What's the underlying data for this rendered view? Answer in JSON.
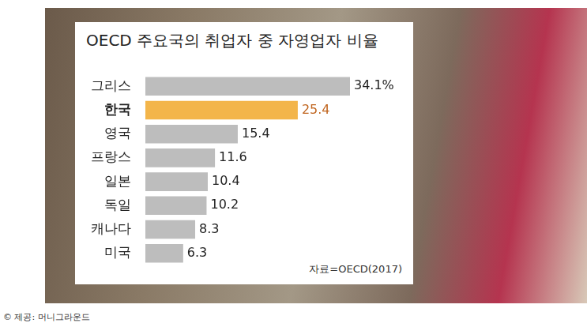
{
  "chart_data": {
    "type": "bar",
    "orientation": "horizontal",
    "title": "OECD 주요국의 취업자 중 자영업자 비율",
    "categories": [
      "그리스",
      "한국",
      "영국",
      "프랑스",
      "일본",
      "독일",
      "캐나다",
      "미국"
    ],
    "values": [
      34.1,
      25.4,
      15.4,
      11.6,
      10.4,
      10.2,
      8.3,
      6.3
    ],
    "value_labels": [
      "34.1%",
      "25.4",
      "15.4",
      "11.6",
      "10.4",
      "10.2",
      "8.3",
      "6.3"
    ],
    "colors": [
      "#bdbdbd",
      "#f3b54a",
      "#bdbdbd",
      "#bdbdbd",
      "#bdbdbd",
      "#bdbdbd",
      "#bdbdbd",
      "#bdbdbd"
    ],
    "xlim": [
      0,
      42
    ],
    "data_labels": true,
    "tick_labels": "y",
    "grid": false,
    "source": "자료=OECD(2017)",
    "credit": "© 제공: 머니그라운드"
  }
}
